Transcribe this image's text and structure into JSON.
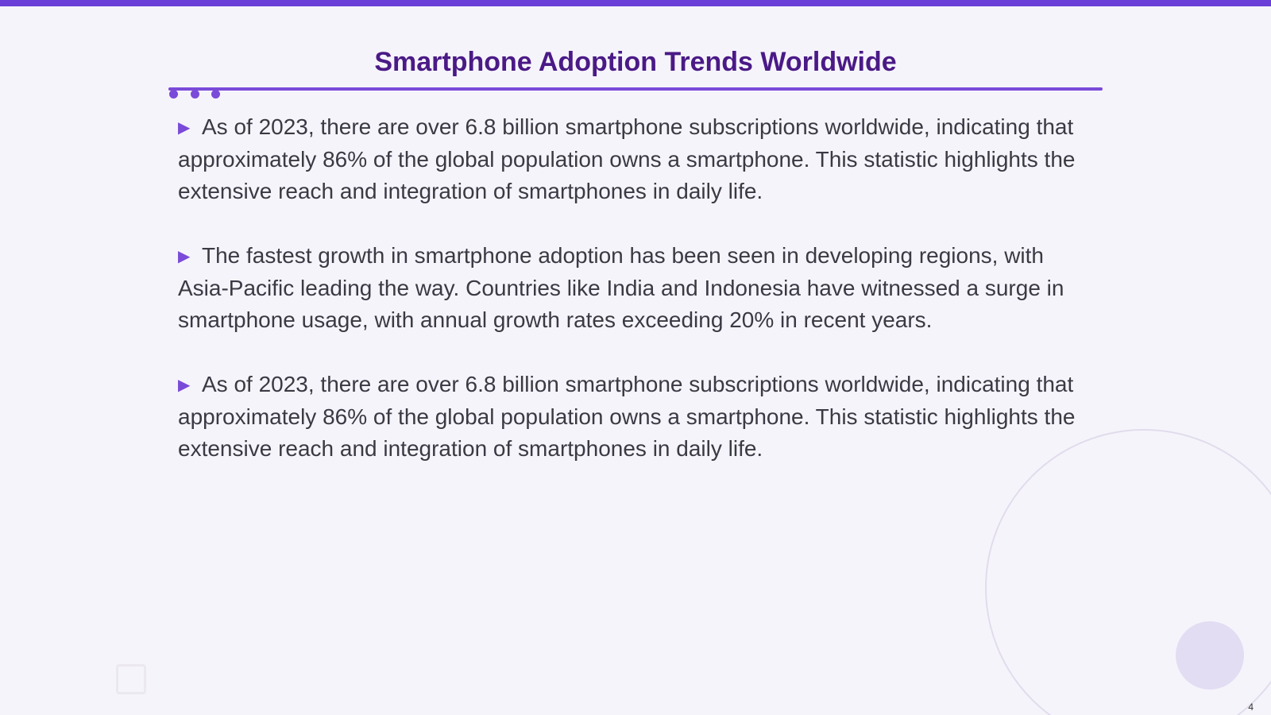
{
  "slide": {
    "title": "Smartphone Adoption Trends Worldwide",
    "page_number": "4",
    "accent_color": "#6a3fd8",
    "title_color": "#4a1a86",
    "bullet_icon": "triangle-right-icon",
    "bullets": [
      {
        "text": "As of 2023, there are over 6.8 billion smartphone subscriptions worldwide, indicating that approximately 86% of the global population owns a smartphone. This statistic highlights the extensive reach and integration of smartphones in daily life."
      },
      {
        "text": "The fastest growth in smartphone adoption has been seen in developing regions, with Asia-Pacific leading the way. Countries like India and Indonesia have witnessed a surge in smartphone usage, with annual growth rates exceeding 20% in recent years."
      },
      {
        "text": "As of 2023, there are over 6.8 billion smartphone subscriptions worldwide, indicating that approximately 86% of the global population owns a smartphone. This statistic highlights the extensive reach and integration of smartphones in daily life."
      }
    ]
  }
}
